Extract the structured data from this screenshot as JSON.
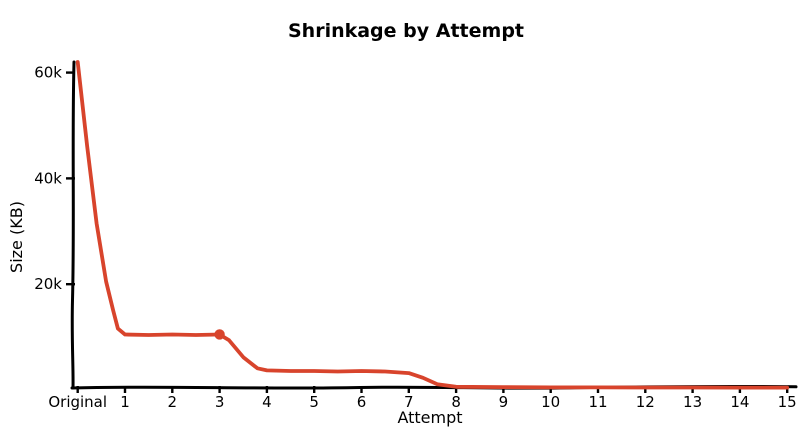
{
  "chart_data": {
    "type": "line",
    "style": "xkcd-hand-drawn",
    "title": "Shrinkage by Attempt",
    "xlabel": "Attempt",
    "ylabel": "Size (KB)",
    "x_tick_labels": [
      "Original",
      "1",
      "2",
      "3",
      "4",
      "5",
      "6",
      "7",
      "8",
      "9",
      "10",
      "11",
      "12",
      "13",
      "14",
      "15"
    ],
    "y_tick_labels": [
      "20k",
      "40k",
      "60k"
    ],
    "y_tick_values": [
      20000,
      40000,
      60000
    ],
    "xlim": [
      0,
      15
    ],
    "ylim": [
      0,
      62000
    ],
    "grid": false,
    "legend": "none",
    "line_color": "#d8442c",
    "axis_color": "#000000",
    "background_color": "#ffffff",
    "series": [
      {
        "name": "size-kb",
        "categories": [
          "Original",
          "1",
          "2",
          "3",
          "4",
          "5",
          "6",
          "7",
          "8",
          "9",
          "10",
          "11",
          "12",
          "13",
          "14",
          "15"
        ],
        "values": [
          62000,
          10500,
          10500,
          10500,
          3700,
          3600,
          3600,
          3200,
          600,
          550,
          500,
          500,
          480,
          470,
          460,
          450
        ]
      }
    ],
    "curve_points": [
      [
        0,
        62000
      ],
      [
        0.2,
        46000
      ],
      [
        0.4,
        31500
      ],
      [
        0.6,
        20500
      ],
      [
        0.75,
        15000
      ],
      [
        0.85,
        11600
      ],
      [
        1,
        10500
      ],
      [
        1.5,
        10400
      ],
      [
        2,
        10500
      ],
      [
        2.5,
        10400
      ],
      [
        3,
        10500
      ],
      [
        3.2,
        9400
      ],
      [
        3.5,
        6200
      ],
      [
        3.8,
        4100
      ],
      [
        4,
        3700
      ],
      [
        4.5,
        3600
      ],
      [
        5,
        3600
      ],
      [
        5.5,
        3500
      ],
      [
        6,
        3600
      ],
      [
        6.5,
        3500
      ],
      [
        7,
        3200
      ],
      [
        7.3,
        2300
      ],
      [
        7.6,
        1100
      ],
      [
        8,
        600
      ],
      [
        9,
        550
      ],
      [
        10,
        500
      ],
      [
        11,
        500
      ],
      [
        12,
        480
      ],
      [
        13,
        470
      ],
      [
        14,
        460
      ],
      [
        15,
        450
      ]
    ],
    "highlight_point": {
      "attempt": 3,
      "value": 10500
    }
  }
}
